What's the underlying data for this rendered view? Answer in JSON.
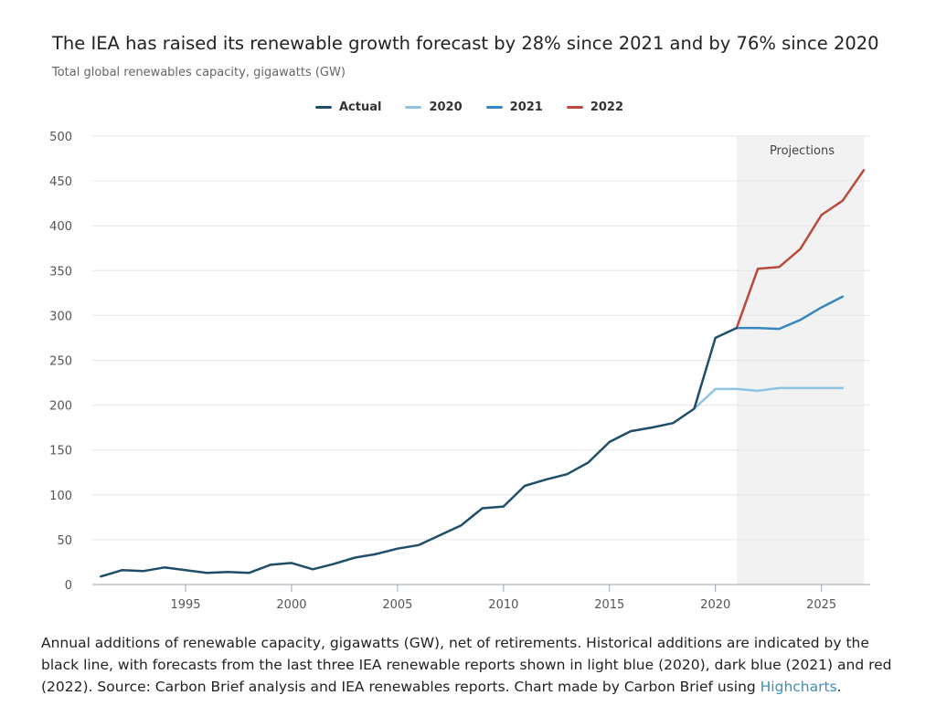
{
  "header": {
    "title": "The IEA has raised its renewable growth forecast by 28% since 2021 and by 76% since 2020",
    "subtitle": "Total global renewables capacity, gigawatts (GW)"
  },
  "caption": {
    "text": "Annual additions of renewable capacity, gigawatts (GW), net of retirements. Historical additions are indicated by the black line, with forecasts from the last three IEA renewable reports shown in light blue (2020), dark blue (2021) and red (2022). Source: Carbon Brief analysis and IEA renewables reports. Chart made by Carbon Brief using ",
    "link_text": "Highcharts",
    "end": "."
  },
  "chart_data": {
    "type": "line",
    "title": "The IEA has raised its renewable growth forecast by 28% since 2021 and by 76% since 2020",
    "ylabel": "Total global renewables capacity, gigawatts (GW)",
    "xlabel": "",
    "xlim": [
      1990.6,
      2027.3
    ],
    "ylim": [
      0,
      500
    ],
    "yticks": [
      0,
      50,
      100,
      150,
      200,
      250,
      300,
      350,
      400,
      450,
      500
    ],
    "xticks": [
      1995,
      2000,
      2005,
      2010,
      2015,
      2020,
      2025
    ],
    "grid": true,
    "legend_position": "top-center",
    "projection_band": {
      "label": "Projections",
      "from": 2021,
      "to": 2027
    },
    "series": [
      {
        "name": "Actual",
        "color": "#1f4e6b",
        "x": [
          1991,
          1992,
          1993,
          1994,
          1995,
          1996,
          1997,
          1998,
          1999,
          2000,
          2001,
          2002,
          2003,
          2004,
          2005,
          2006,
          2007,
          2008,
          2009,
          2010,
          2011,
          2012,
          2013,
          2014,
          2015,
          2016,
          2017,
          2018,
          2019,
          2020,
          2021
        ],
        "values": [
          9,
          16,
          15,
          19,
          16,
          13,
          14,
          13,
          22,
          24,
          17,
          23,
          30,
          34,
          40,
          44,
          55,
          66,
          85,
          87,
          110,
          117,
          123,
          136,
          159,
          171,
          175,
          180,
          196,
          275,
          286
        ]
      },
      {
        "name": "2020",
        "color": "#8ec4e3",
        "x": [
          2019,
          2020,
          2021,
          2022,
          2023,
          2024,
          2025,
          2026
        ],
        "values": [
          196,
          218,
          218,
          216,
          219,
          219,
          219,
          219
        ]
      },
      {
        "name": "2021",
        "color": "#3688c1",
        "x": [
          2021,
          2022,
          2023,
          2024,
          2025,
          2026
        ],
        "values": [
          286,
          286,
          285,
          295,
          309,
          321
        ]
      },
      {
        "name": "2022",
        "color": "#b94a3a",
        "x": [
          2021,
          2022,
          2023,
          2024,
          2025,
          2026,
          2027
        ],
        "values": [
          286,
          352,
          354,
          374,
          412,
          428,
          462
        ]
      }
    ]
  }
}
